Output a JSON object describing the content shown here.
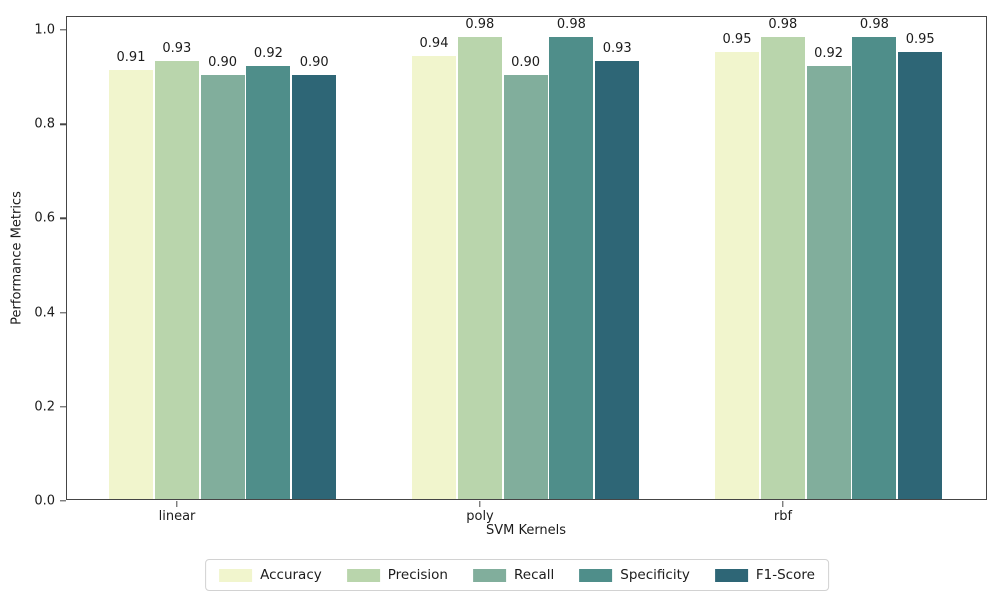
{
  "chart_data": {
    "type": "bar",
    "title": "",
    "xlabel": "SVM Kernels",
    "ylabel": "Performance Metrics",
    "categories": [
      "linear",
      "poly",
      "rbf"
    ],
    "series": [
      {
        "name": "Accuracy",
        "color": "#f1f5cd",
        "values": [
          0.91,
          0.94,
          0.95
        ]
      },
      {
        "name": "Precision",
        "color": "#b9d5ac",
        "values": [
          0.93,
          0.98,
          0.98
        ]
      },
      {
        "name": "Recall",
        "color": "#81ae9c",
        "values": [
          0.9,
          0.9,
          0.92
        ]
      },
      {
        "name": "Specificity",
        "color": "#4f8e8a",
        "values": [
          0.92,
          0.98,
          0.98
        ]
      },
      {
        "name": "F1-Score",
        "color": "#2e6676",
        "values": [
          0.9,
          0.93,
          0.95
        ]
      }
    ],
    "bar_value_labels": [
      [
        "0.91",
        "0.93",
        "0.90",
        "0.92",
        "0.90"
      ],
      [
        "0.94",
        "0.98",
        "0.90",
        "0.98",
        "0.93"
      ],
      [
        "0.95",
        "0.98",
        "0.92",
        "0.98",
        "0.95"
      ]
    ],
    "ylim": [
      0.0,
      1.03
    ],
    "yticks": [
      0.0,
      0.2,
      0.4,
      0.6,
      0.8,
      1.0
    ],
    "grid": false,
    "legend_position": "lower-center-outside",
    "spine_color": "#454545",
    "text_color": "#1c1c1c"
  }
}
